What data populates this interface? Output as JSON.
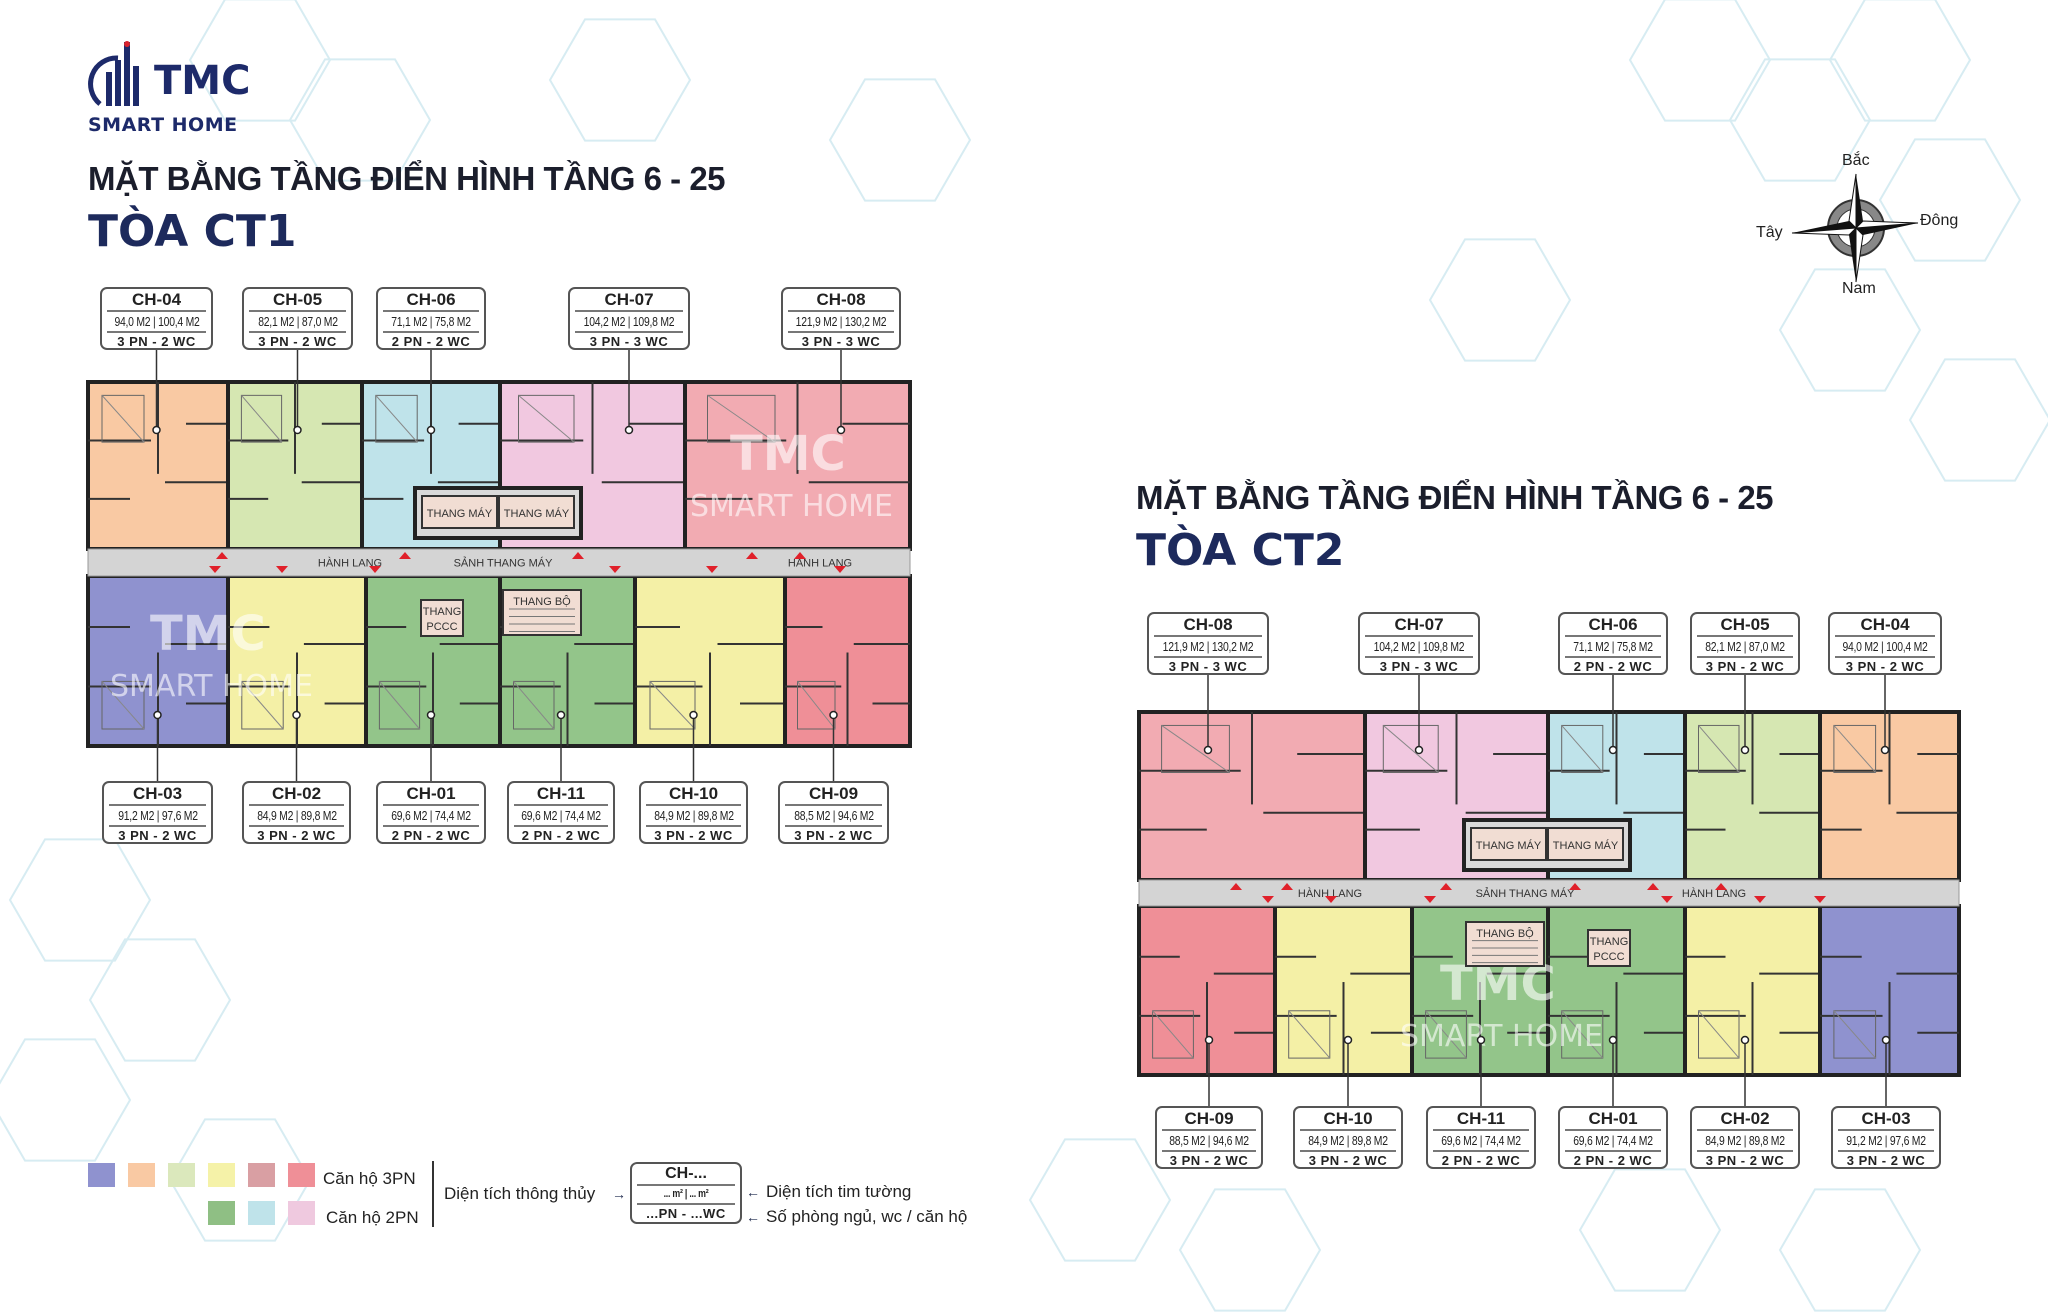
{
  "logo": {
    "brand": "TMC",
    "tagline": "SMART HOME"
  },
  "ct1": {
    "heading": "MẶT BẰNG TẦNG ĐIỂN HÌNH TẦNG 6 - 25",
    "tower": "TÒA CT1",
    "core_labels": {
      "elevator": "THANG MÁY",
      "lobby": "SẢNH THANG MÁY",
      "corridor": "HÀNH LANG",
      "stair": "THANG BỘ",
      "fire_lift_1": "THANG",
      "fire_lift_2": "PCCC"
    },
    "top_units": [
      {
        "id": "CH-04",
        "area": "94,0 M2 | 100,4 M2",
        "rooms": "3 PN - 2 WC",
        "color": "#f9c9a3"
      },
      {
        "id": "CH-05",
        "area": "82,1 M2 | 87,0 M2",
        "rooms": "3 PN - 2 WC",
        "color": "#d6e7b2"
      },
      {
        "id": "CH-06",
        "area": "71,1 M2 | 75,8 M2",
        "rooms": "2 PN - 2 WC",
        "color": "#bfe3ea"
      },
      {
        "id": "CH-07",
        "area": "104,2 M2 | 109,8 M2",
        "rooms": "3 PN - 3 WC",
        "color": "#f1c8e0"
      },
      {
        "id": "CH-08",
        "area": "121,9 M2 | 130,2 M2",
        "rooms": "3 PN - 3 WC",
        "color": "#f2abb2"
      }
    ],
    "bottom_units": [
      {
        "id": "CH-03",
        "area": "91,2 M2 | 97,6 M2",
        "rooms": "3 PN - 2 WC",
        "color": "#8f92cf"
      },
      {
        "id": "CH-02",
        "area": "84,9 M2 | 89,8 M2",
        "rooms": "3 PN - 2 WC",
        "color": "#f4f0a6"
      },
      {
        "id": "CH-01",
        "area": "69,6 M2 | 74,4 M2",
        "rooms": "2 PN - 2 WC",
        "color": "#93c58a"
      },
      {
        "id": "CH-11",
        "area": "69,6 M2 | 74,4 M2",
        "rooms": "2 PN - 2 WC",
        "color": "#93c58a"
      },
      {
        "id": "CH-10",
        "area": "84,9 M2 | 89,8 M2",
        "rooms": "3 PN - 2 WC",
        "color": "#f4f0a6"
      },
      {
        "id": "CH-09",
        "area": "88,5 M2 | 94,6 M2",
        "rooms": "3 PN - 2 WC",
        "color": "#ef8f97"
      }
    ]
  },
  "ct2": {
    "heading": "MẶT BẰNG TẦNG ĐIỂN HÌNH TẦNG 6 - 25",
    "tower": "TÒA CT2",
    "core_labels": {
      "elevator": "THANG MÁY",
      "lobby": "SẢNH THANG MÁY",
      "corridor": "HÀNH LANG",
      "stair": "THANG BỘ",
      "fire_lift_1": "THANG",
      "fire_lift_2": "PCCC"
    },
    "top_units": [
      {
        "id": "CH-08",
        "area": "121,9 M2 | 130,2 M2",
        "rooms": "3 PN - 3 WC",
        "color": "#f2abb2"
      },
      {
        "id": "CH-07",
        "area": "104,2 M2 | 109,8 M2",
        "rooms": "3 PN - 3 WC",
        "color": "#f1c8e0"
      },
      {
        "id": "CH-06",
        "area": "71,1 M2 | 75,8 M2",
        "rooms": "2 PN - 2 WC",
        "color": "#bfe3ea"
      },
      {
        "id": "CH-05",
        "area": "82,1 M2 | 87,0 M2",
        "rooms": "3 PN - 2 WC",
        "color": "#d6e7b2"
      },
      {
        "id": "CH-04",
        "area": "94,0 M2 | 100,4 M2",
        "rooms": "3 PN - 2 WC",
        "color": "#f9c9a3"
      }
    ],
    "bottom_units": [
      {
        "id": "CH-09",
        "area": "88,5 M2 | 94,6 M2",
        "rooms": "3 PN - 2 WC",
        "color": "#ef8f97"
      },
      {
        "id": "CH-10",
        "area": "84,9 M2 | 89,8 M2",
        "rooms": "3 PN - 2 WC",
        "color": "#f4f0a6"
      },
      {
        "id": "CH-11",
        "area": "69,6 M2 | 74,4 M2",
        "rooms": "2 PN - 2 WC",
        "color": "#93c58a"
      },
      {
        "id": "CH-01",
        "area": "69,6 M2 | 74,4 M2",
        "rooms": "2 PN - 2 WC",
        "color": "#93c58a"
      },
      {
        "id": "CH-02",
        "area": "84,9 M2 | 89,8 M2",
        "rooms": "3 PN - 2 WC",
        "color": "#f4f0a6"
      },
      {
        "id": "CH-03",
        "area": "91,2 M2 | 97,6 M2",
        "rooms": "3 PN - 2 WC",
        "color": "#8f92cf"
      }
    ]
  },
  "compass": {
    "north": "Bắc",
    "south": "Nam",
    "east": "Đông",
    "west": "Tây"
  },
  "legend": {
    "three_bed_label": "Căn hộ 3PN",
    "two_bed_label": "Căn hộ 2PN",
    "three_bed_colors": [
      "#8f92cf",
      "#f9c9a3",
      "#dbe8bc",
      "#f5f2a8",
      "#d99fa3",
      "#ef8f97"
    ],
    "two_bed_colors": [
      "#8fbf84",
      "#bfe3ea",
      "#efc9df"
    ],
    "net_area_label": "Diện tích thông thủy",
    "gross_area_label": "Diện tích tim tường",
    "rooms_label": "Số phòng ngủ, wc / căn hộ",
    "sample_id": "CH-...",
    "sample_area": "... m² | ... m²",
    "sample_rooms": "...PN - ...WC"
  },
  "watermark": {
    "brand": "TMC",
    "tagline": "SMART HOME"
  }
}
